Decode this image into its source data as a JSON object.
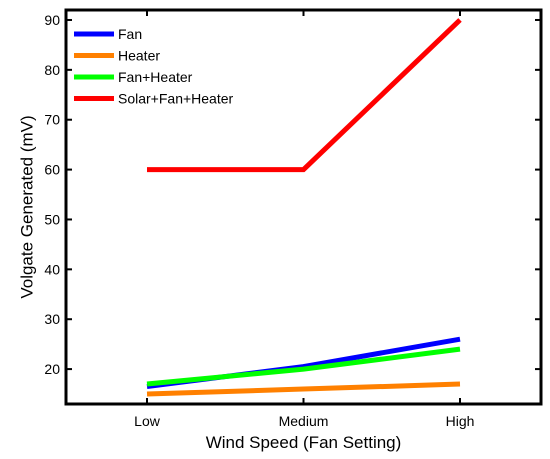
{
  "chart_data": {
    "type": "line",
    "title": "",
    "xlabel": "Wind Speed (Fan Setting)",
    "ylabel": "Volgate Generated (mV)",
    "categories": [
      "Low",
      "Medium",
      "High"
    ],
    "ylim": [
      13,
      92
    ],
    "yticks": [
      20,
      30,
      40,
      50,
      60,
      70,
      80,
      90
    ],
    "grid": false,
    "legend_position": "top-left",
    "series": [
      {
        "name": "Fan",
        "color": "#0000ff",
        "values": [
          16.5,
          20.5,
          26
        ]
      },
      {
        "name": "Heater",
        "color": "#ff8000",
        "values": [
          15,
          16,
          17
        ]
      },
      {
        "name": "Fan+Heater",
        "color": "#00ff00",
        "values": [
          17,
          20,
          24
        ]
      },
      {
        "name": "Solar+Fan+Heater",
        "color": "#ff0000",
        "values": [
          60,
          60,
          90
        ]
      }
    ]
  }
}
